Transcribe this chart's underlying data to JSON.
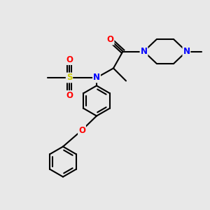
{
  "bg_color": "#e8e8e8",
  "bond_color": "#000000",
  "bond_width": 1.5,
  "atom_colors": {
    "N": "#0000ff",
    "O": "#ff0000",
    "S": "#cccc00",
    "C": "#000000"
  },
  "font_size": 8.5
}
